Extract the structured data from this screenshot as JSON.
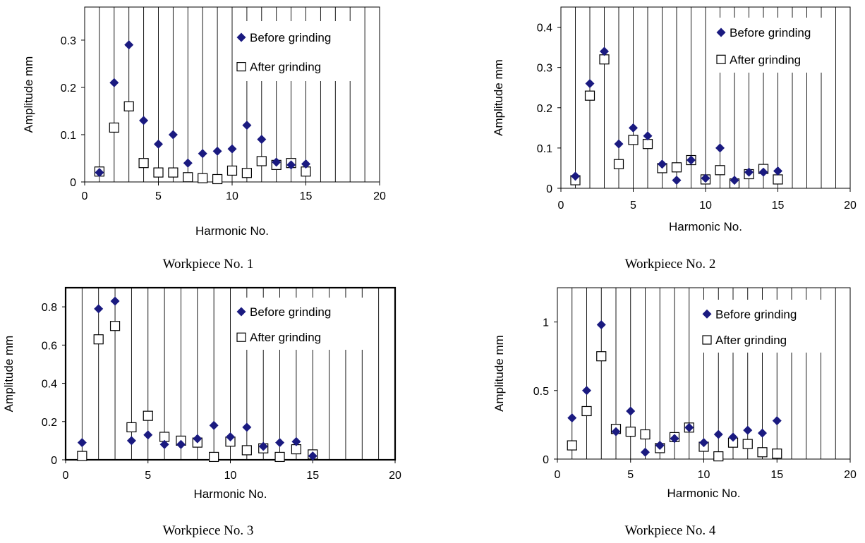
{
  "chart_data": [
    {
      "type": "scatter",
      "caption": "Workpiece No. 1",
      "xlabel": "Harmonic No.",
      "ylabel": "Amplitude mm",
      "xlim": [
        0,
        20
      ],
      "ylim": [
        0,
        0.37
      ],
      "xticks": [
        "0",
        "5",
        "10",
        "15",
        "20"
      ],
      "yticks": [
        "0",
        "0.1",
        "0.2",
        "0.3"
      ],
      "grid": "vertical",
      "legend_position": "top-right",
      "series": [
        {
          "name": "Before grinding",
          "marker": "diamond",
          "color": "#1a1a80",
          "points": [
            [
              1,
              0.02
            ],
            [
              2,
              0.21
            ],
            [
              3,
              0.29
            ],
            [
              4,
              0.13
            ],
            [
              5,
              0.08
            ],
            [
              6,
              0.1
            ],
            [
              7,
              0.04
            ],
            [
              8,
              0.06
            ],
            [
              9,
              0.065
            ],
            [
              10,
              0.07
            ],
            [
              11,
              0.12
            ],
            [
              12,
              0.09
            ],
            [
              13,
              0.042
            ],
            [
              14,
              0.036
            ],
            [
              15,
              0.038
            ]
          ]
        },
        {
          "name": "After grinding",
          "marker": "square-open",
          "color": "#000000",
          "points": [
            [
              1,
              0.022
            ],
            [
              2,
              0.115
            ],
            [
              3,
              0.16
            ],
            [
              4,
              0.04
            ],
            [
              5,
              0.02
            ],
            [
              6,
              0.02
            ],
            [
              7,
              0.01
            ],
            [
              8,
              0.008
            ],
            [
              9,
              0.006
            ],
            [
              10,
              0.024
            ],
            [
              11,
              0.019
            ],
            [
              12,
              0.044
            ],
            [
              13,
              0.036
            ],
            [
              14,
              0.04
            ],
            [
              15,
              0.022
            ]
          ]
        }
      ]
    },
    {
      "type": "scatter",
      "caption": "Workpiece No. 2",
      "xlabel": "Harmonic No.",
      "ylabel": "Amplitude mm",
      "xlim": [
        0,
        20
      ],
      "ylim": [
        0,
        0.45
      ],
      "xticks": [
        "0",
        "5",
        "10",
        "15",
        "20"
      ],
      "yticks": [
        "0",
        "0.1",
        "0.2",
        "0.3",
        "0.4"
      ],
      "grid": "vertical",
      "legend_position": "top-right",
      "series": [
        {
          "name": "Before grinding",
          "marker": "diamond",
          "color": "#1a1a80",
          "points": [
            [
              1,
              0.03
            ],
            [
              2,
              0.26
            ],
            [
              3,
              0.34
            ],
            [
              4,
              0.11
            ],
            [
              5,
              0.15
            ],
            [
              6,
              0.13
            ],
            [
              7,
              0.06
            ],
            [
              8,
              0.02
            ],
            [
              9,
              0.07
            ],
            [
              10,
              0.025
            ],
            [
              11,
              0.1
            ],
            [
              12,
              0.02
            ],
            [
              13,
              0.04
            ],
            [
              14,
              0.04
            ],
            [
              15,
              0.043
            ]
          ]
        },
        {
          "name": "After grinding",
          "marker": "square-open",
          "color": "#000000",
          "points": [
            [
              1,
              0.02
            ],
            [
              2,
              0.23
            ],
            [
              3,
              0.32
            ],
            [
              4,
              0.06
            ],
            [
              5,
              0.12
            ],
            [
              6,
              0.11
            ],
            [
              7,
              0.05
            ],
            [
              8,
              0.052
            ],
            [
              9,
              0.07
            ],
            [
              10,
              0.022
            ],
            [
              11,
              0.045
            ],
            [
              12,
              0.012
            ],
            [
              13,
              0.035
            ],
            [
              14,
              0.048
            ],
            [
              15,
              0.022
            ]
          ]
        }
      ]
    },
    {
      "type": "scatter",
      "caption": "Workpiece No. 3",
      "xlabel": "Harmonic No.",
      "ylabel": "Amplitude mm",
      "xlim": [
        0,
        20
      ],
      "ylim": [
        0,
        0.9
      ],
      "xticks": [
        "0",
        "5",
        "10",
        "15",
        "20"
      ],
      "yticks": [
        "0",
        "0.2",
        "0.4",
        "0.6",
        "0.8"
      ],
      "grid": "vertical",
      "legend_position": "top-right",
      "series": [
        {
          "name": "Before grinding",
          "marker": "diamond",
          "color": "#1a1a80",
          "points": [
            [
              1,
              0.09
            ],
            [
              2,
              0.79
            ],
            [
              3,
              0.83
            ],
            [
              4,
              0.1
            ],
            [
              5,
              0.13
            ],
            [
              6,
              0.08
            ],
            [
              7,
              0.08
            ],
            [
              8,
              0.11
            ],
            [
              9,
              0.18
            ],
            [
              10,
              0.12
            ],
            [
              11,
              0.17
            ],
            [
              12,
              0.07
            ],
            [
              13,
              0.09
            ],
            [
              14,
              0.095
            ],
            [
              15,
              0.02
            ]
          ]
        },
        {
          "name": "After grinding",
          "marker": "square-open",
          "color": "#000000",
          "points": [
            [
              1,
              0.02
            ],
            [
              2,
              0.63
            ],
            [
              3,
              0.7
            ],
            [
              4,
              0.17
            ],
            [
              5,
              0.23
            ],
            [
              6,
              0.12
            ],
            [
              7,
              0.1
            ],
            [
              8,
              0.09
            ],
            [
              9,
              0.015
            ],
            [
              10,
              0.095
            ],
            [
              11,
              0.05
            ],
            [
              12,
              0.06
            ],
            [
              13,
              0.015
            ],
            [
              14,
              0.055
            ],
            [
              15,
              0.028
            ]
          ]
        }
      ]
    },
    {
      "type": "scatter",
      "caption": "Workpiece No. 4",
      "xlabel": "Harmonic No.",
      "ylabel": "Amplitude mm",
      "xlim": [
        0,
        20
      ],
      "ylim": [
        0,
        1.25
      ],
      "xticks": [
        "0",
        "5",
        "10",
        "15",
        "20"
      ],
      "yticks": [
        "0",
        "0.5",
        "1"
      ],
      "grid": "vertical",
      "legend_position": "top-right",
      "series": [
        {
          "name": "Before grinding",
          "marker": "diamond",
          "color": "#1a1a80",
          "points": [
            [
              1,
              0.3
            ],
            [
              2,
              0.5
            ],
            [
              3,
              0.98
            ],
            [
              4,
              0.2
            ],
            [
              5,
              0.35
            ],
            [
              6,
              0.05
            ],
            [
              7,
              0.1
            ],
            [
              8,
              0.15
            ],
            [
              9,
              0.23
            ],
            [
              10,
              0.12
            ],
            [
              11,
              0.18
            ],
            [
              12,
              0.16
            ],
            [
              13,
              0.21
            ],
            [
              14,
              0.19
            ],
            [
              15,
              0.28
            ]
          ]
        },
        {
          "name": "After grinding",
          "marker": "square-open",
          "color": "#000000",
          "points": [
            [
              1,
              0.1
            ],
            [
              2,
              0.35
            ],
            [
              3,
              0.75
            ],
            [
              4,
              0.22
            ],
            [
              5,
              0.2
            ],
            [
              6,
              0.18
            ],
            [
              7,
              0.08
            ],
            [
              8,
              0.16
            ],
            [
              9,
              0.23
            ],
            [
              10,
              0.09
            ],
            [
              11,
              0.02
            ],
            [
              12,
              0.12
            ],
            [
              13,
              0.11
            ],
            [
              14,
              0.05
            ],
            [
              15,
              0.04
            ]
          ]
        }
      ]
    }
  ]
}
